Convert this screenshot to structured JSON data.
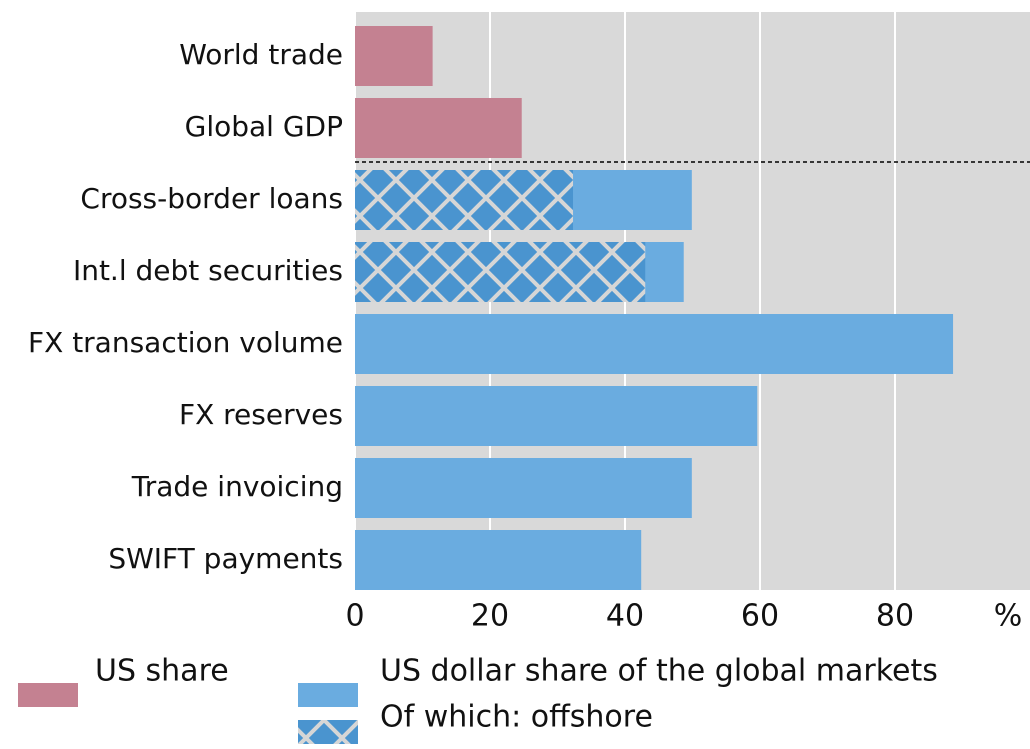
{
  "chart_data": {
    "type": "bar",
    "orientation": "horizontal",
    "categories": [
      "World trade",
      "Global GDP",
      "Cross-border loans",
      "Int.l debt securities",
      "FX transaction volume",
      "FX reserves",
      "Trade invoicing",
      "SWIFT payments"
    ],
    "series": [
      {
        "name": "US share",
        "color": "#c48191",
        "values": [
          11.5,
          24.7,
          null,
          null,
          null,
          null,
          null,
          null
        ]
      },
      {
        "name": "US dollar share of the global markets",
        "color": "#6aace0",
        "values": [
          null,
          null,
          49.9,
          48.7,
          88.6,
          59.6,
          49.9,
          42.4
        ]
      },
      {
        "name": "Of which: offshore",
        "color": "#4a94cf",
        "hatch": true,
        "values": [
          null,
          null,
          32.3,
          43,
          null,
          null,
          null,
          null
        ]
      }
    ],
    "xlim": [
      0,
      100
    ],
    "xticks": [
      0,
      20,
      40,
      60,
      80
    ],
    "x_unit_label": "%",
    "grid": true
  }
}
